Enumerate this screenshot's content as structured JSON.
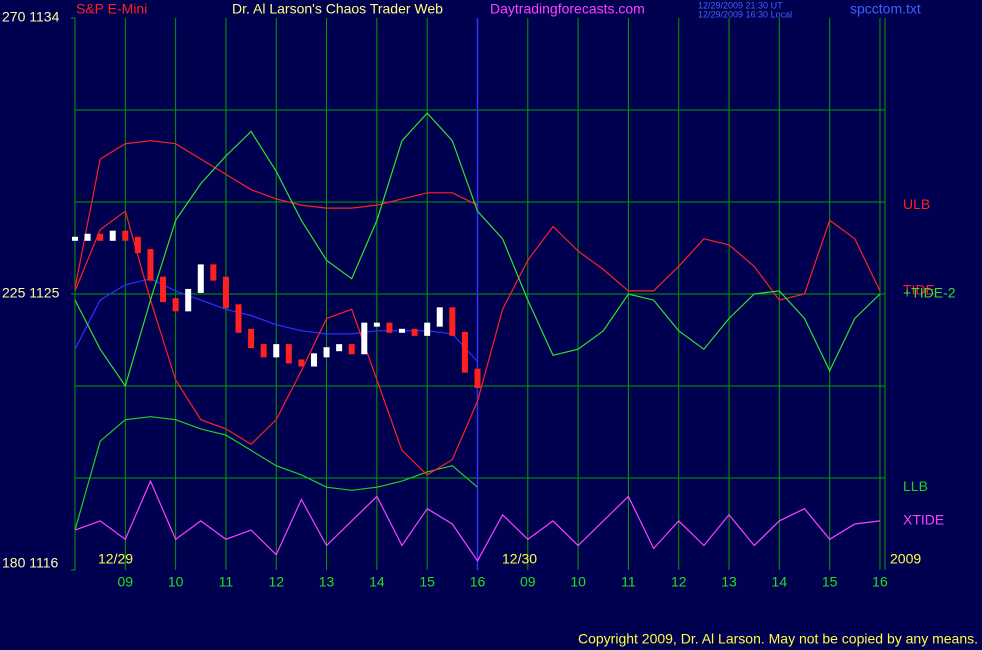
{
  "chart_data": {
    "type": "line",
    "symbol": "S&P E-Mini",
    "title": "Dr. Al Larson's Chaos Trader Web",
    "source": "Daytradingforecasts.com",
    "timestamps": [
      "12/29/2009 21:30 UT",
      "12/29/2009 16:30 Local"
    ],
    "file": "spcctom.txt",
    "day_labels": [
      "12/29",
      "12/30"
    ],
    "year": "2009",
    "copyright": "Copyright 2009, Dr. Al Larson. May not be copied by any means.",
    "xlim": [
      0,
      16.1
    ],
    "xticks": [
      {
        "value": 1,
        "label": "09"
      },
      {
        "value": 2,
        "label": "10"
      },
      {
        "value": 3,
        "label": "11"
      },
      {
        "value": 4,
        "label": "12"
      },
      {
        "value": 5,
        "label": "13"
      },
      {
        "value": 6,
        "label": "14"
      },
      {
        "value": 7,
        "label": "15"
      },
      {
        "value": 8,
        "label": "16"
      },
      {
        "value": 9,
        "label": "09"
      },
      {
        "value": 10,
        "label": "10"
      },
      {
        "value": 11,
        "label": "11"
      },
      {
        "value": 12,
        "label": "12"
      },
      {
        "value": 13,
        "label": "13"
      },
      {
        "value": 14,
        "label": "14"
      },
      {
        "value": 15,
        "label": "15"
      },
      {
        "value": 16,
        "label": "16"
      }
    ],
    "day_break": 8,
    "ylim": [
      1116,
      1134
    ],
    "yticks": [
      {
        "value": 1134,
        "label": "270 1134"
      },
      {
        "value": 1125,
        "label": "225 1125"
      },
      {
        "value": 1116,
        "label": "180 1116"
      }
    ],
    "ygrid": [
      1119,
      1122,
      1125,
      1128,
      1131
    ],
    "grid": true,
    "grid_color": "#00a000",
    "background": "#000050",
    "x": [
      0,
      0.5,
      1,
      1.5,
      2,
      2.5,
      3,
      3.5,
      4,
      4.5,
      5,
      5.5,
      6,
      6.5,
      7,
      7.5,
      8,
      8.5,
      9,
      9.5,
      10,
      10.5,
      11,
      11.5,
      12,
      12.5,
      13,
      13.5,
      14,
      14.5,
      15,
      15.5,
      16
    ],
    "series": [
      {
        "name": "ULB",
        "color": "#ff2020",
        "values": [
          1125.2,
          1129.4,
          1129.9,
          1130.0,
          1129.9,
          1129.4,
          1128.9,
          1128.4,
          1128.1,
          1127.9,
          1127.8,
          1127.8,
          1127.9,
          1128.1,
          1128.3,
          1128.3,
          1127.9,
          null,
          null,
          null,
          null,
          null,
          null,
          null,
          null,
          null,
          null,
          null,
          null,
          null,
          null,
          null,
          null
        ]
      },
      {
        "name": "LLB",
        "color": "#20d020",
        "values": [
          1117.3,
          1120.2,
          1120.9,
          1121.0,
          1120.9,
          1120.6,
          1120.4,
          1119.9,
          1119.4,
          1119.1,
          1118.7,
          1118.6,
          1118.7,
          1118.9,
          1119.2,
          1119.4,
          1118.7,
          null,
          null,
          null,
          null,
          null,
          null,
          null,
          null,
          null,
          null,
          null,
          null,
          null,
          null,
          null,
          null
        ]
      },
      {
        "color": "#3030ff",
        "values": [
          1123.2,
          1124.8,
          1125.3,
          1125.5,
          1125.1,
          1124.8,
          1124.5,
          1124.3,
          1124.0,
          1123.8,
          1123.7,
          1123.7,
          1123.8,
          1123.8,
          1123.8,
          1123.7,
          1122.8,
          null,
          null,
          null,
          null,
          null,
          null,
          null,
          null,
          null,
          null,
          null,
          null,
          null,
          null,
          null,
          null
        ]
      },
      {
        "name": "TIDE",
        "color": "#ff2020",
        "values": [
          1125.1,
          1127.1,
          1127.7,
          1124.8,
          1122.2,
          1120.9,
          1120.6,
          1120.1,
          1120.9,
          1122.5,
          1124.2,
          1124.5,
          1122.2,
          1119.9,
          1119.1,
          1119.6,
          1121.5,
          1124.5,
          1126.1,
          1127.2,
          1126.4,
          1125.8,
          1125.1,
          1125.1,
          1125.9,
          1126.8,
          1126.6,
          1125.9,
          1124.8,
          1125.0,
          1127.4,
          1126.8,
          1125.1
        ]
      },
      {
        "name": "+TIDE-2",
        "color": "#30e030",
        "values": [
          1124.8,
          1123.2,
          1122.0,
          1124.8,
          1127.4,
          1128.6,
          1129.5,
          1130.3,
          1129.0,
          1127.4,
          1126.1,
          1125.5,
          1127.4,
          1130.0,
          1130.9,
          1130.0,
          1127.7,
          1126.8,
          1124.8,
          1123.0,
          1123.2,
          1123.8,
          1125.0,
          1124.8,
          1123.8,
          1123.2,
          1124.2,
          1125.0,
          1125.1,
          1124.2,
          1122.5,
          1124.2,
          1125.0
        ]
      },
      {
        "name": "XTIDE",
        "color": "#ff40ff",
        "values": [
          1117.3,
          1117.6,
          1117.0,
          1118.9,
          1117.0,
          1117.6,
          1117.0,
          1117.3,
          1116.5,
          1118.3,
          1116.8,
          1117.6,
          1118.4,
          1116.8,
          1118.0,
          1117.5,
          1116.3,
          1117.8,
          1117.0,
          1117.6,
          1116.8,
          1117.6,
          1118.4,
          1116.7,
          1117.6,
          1116.8,
          1117.8,
          1116.8,
          1117.6,
          1118.0,
          1117.0,
          1117.5,
          1117.6
        ]
      },
      {
        "kind": "bars",
        "color": "#ffffff",
        "down_color": "#ff2020",
        "x": [
          0,
          0.25,
          0.5,
          0.75,
          1,
          1.25,
          1.5,
          1.75,
          2,
          2.25,
          2.5,
          2.75,
          3,
          3.25,
          3.5,
          3.75,
          4,
          4.25,
          4.5,
          4.75,
          5,
          5.25,
          5.5,
          5.75,
          6,
          6.25,
          6.5,
          6.75,
          7,
          7.25,
          7.5,
          7.75,
          8
        ],
        "values": [
          1126.8,
          1126.9,
          1126.8,
          1127.0,
          1126.8,
          1126.4,
          1125.5,
          1124.8,
          1124.5,
          1125.1,
          1125.9,
          1125.5,
          1124.6,
          1123.8,
          1123.3,
          1123.0,
          1123.3,
          1122.8,
          1122.7,
          1123.0,
          1123.2,
          1123.3,
          1123.1,
          1124.0,
          1124.0,
          1123.8,
          1123.8,
          1123.7,
          1124.0,
          1124.5,
          1123.7,
          1122.5,
          1122.0
        ]
      }
    ]
  }
}
